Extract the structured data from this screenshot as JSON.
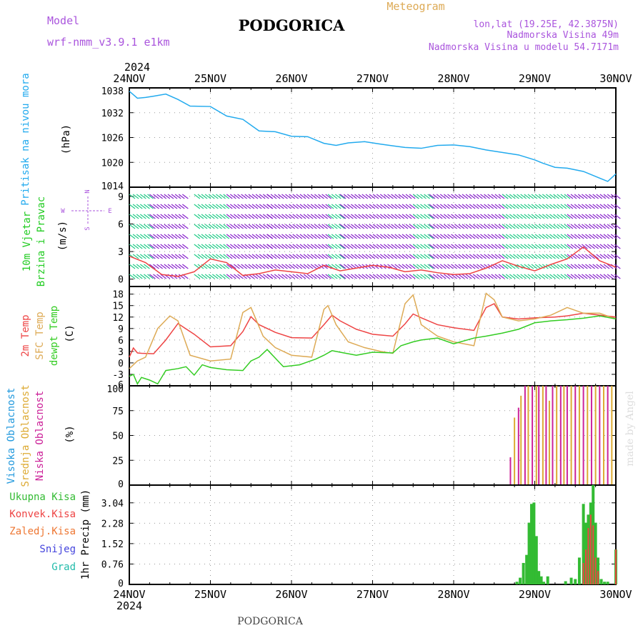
{
  "header": {
    "model_label": "Model",
    "model_name": "wrf-nmm_v3.9.1 e1km",
    "title": "PODGORICA",
    "product": "Meteogram",
    "coords": "lon,lat (19.25E, 42.3875N)",
    "elevation": "Nadmorska Visina 49m",
    "model_elevation": "Nadmorska Visina u modelu 54.7171m",
    "footer_title": "PODGORICA",
    "credit": "made by Angel"
  },
  "colors": {
    "pressure": "#22aaee",
    "temp2m": "#ee4444",
    "sfc": "#ddaa55",
    "dewpt": "#33cc22",
    "high_cloud": "#2299dd",
    "mid_cloud": "#ddaa33",
    "low_cloud": "#cc2299",
    "precip_total": "#33bb33",
    "precip_conv": "#ee4444",
    "precip_frozen": "#ee7733",
    "snow": "#4444dd",
    "hail": "#22bbaa",
    "wind_green": "#22cc88",
    "wind_purple": "#8822cc",
    "label_purple": "#aa55dd"
  },
  "chart_data": [
    {
      "type": "line",
      "title": "Pritisak na nivou mora",
      "ylabel": "(hPa)",
      "ylim": [
        1014,
        1038
      ],
      "yticks": [
        "1038",
        "1032",
        "1026",
        "1020",
        "1014"
      ],
      "x_date_labels": [
        "24NOV",
        "25NOV",
        "26NOV",
        "27NOV",
        "28NOV",
        "29NOV",
        "30NOV"
      ],
      "year_label": "2024",
      "series": [
        {
          "color_key": "pressure",
          "x": [
            0,
            0.1,
            0.2,
            0.3,
            0.45,
            0.6,
            0.75,
            1.0,
            1.2,
            1.4,
            1.6,
            1.8,
            2.0,
            2.2,
            2.4,
            2.55,
            2.7,
            2.9,
            3.1,
            3.25,
            3.4,
            3.6,
            3.8,
            4.0,
            4.2,
            4.4,
            4.6,
            4.8,
            5.0,
            5.1,
            5.25,
            5.4,
            5.6,
            5.8,
            5.9,
            6.0
          ],
          "y": [
            1037.2,
            1035.5,
            1035.7,
            1036.0,
            1036.5,
            1035.2,
            1033.6,
            1033.5,
            1031.2,
            1030.4,
            1027.6,
            1027.4,
            1026.3,
            1026.2,
            1024.6,
            1024.1,
            1024.7,
            1025.0,
            1024.4,
            1024.0,
            1023.6,
            1023.4,
            1024.1,
            1024.2,
            1023.8,
            1023.0,
            1022.4,
            1021.8,
            1020.6,
            1019.8,
            1018.8,
            1018.6,
            1017.8,
            1016.2,
            1015.4,
            1017.2
          ]
        }
      ]
    },
    {
      "type": "line",
      "title": "10m Vjetar Brzina i Pravac",
      "ylabel": "(m/s)",
      "compass_labels": {
        "n": "N",
        "s": "S",
        "e": "E",
        "w": "W"
      },
      "ylim": [
        -0.8,
        10
      ],
      "yticks": [
        "9",
        "6",
        "3",
        "0"
      ],
      "series": [
        {
          "color_key": "temp2m",
          "x": [
            0,
            0.2,
            0.4,
            0.6,
            0.8,
            1.0,
            1.2,
            1.4,
            1.6,
            1.8,
            2.0,
            2.2,
            2.4,
            2.6,
            2.8,
            3.0,
            3.2,
            3.4,
            3.6,
            3.8,
            4.0,
            4.2,
            4.4,
            4.6,
            4.8,
            5.0,
            5.2,
            5.4,
            5.6,
            5.8,
            6.0
          ],
          "y": [
            2.5,
            1.8,
            0.5,
            0.3,
            0.8,
            2.2,
            1.8,
            0.4,
            0.6,
            1.0,
            0.8,
            0.6,
            1.5,
            0.9,
            1.2,
            1.5,
            1.3,
            0.8,
            1.0,
            0.7,
            0.5,
            0.6,
            1.2,
            2.0,
            1.4,
            0.9,
            1.6,
            2.2,
            3.5,
            2.0,
            1.3
          ]
        }
      ]
    },
    {
      "type": "line",
      "title": "2m Temp / SFC Temp / dewpt Temp",
      "ylabel": "(C)",
      "ylim": [
        -6,
        20
      ],
      "yticks": [
        "18",
        "15",
        "12",
        "9",
        "6",
        "3",
        "0",
        "-3",
        "-6"
      ],
      "series": [
        {
          "name": "2m Temp",
          "color_key": "temp2m",
          "x": [
            0,
            0.05,
            0.1,
            0.15,
            0.3,
            0.45,
            0.6,
            0.8,
            1.0,
            1.25,
            1.4,
            1.5,
            1.6,
            1.8,
            2.0,
            2.25,
            2.4,
            2.5,
            2.6,
            2.8,
            3.0,
            3.25,
            3.4,
            3.5,
            3.6,
            3.8,
            4.0,
            4.25,
            4.4,
            4.5,
            4.6,
            4.8,
            5.0,
            5.25,
            5.4,
            5.6,
            5.8,
            6.0
          ],
          "y": [
            1.5,
            3.9,
            2.6,
            2.5,
            2.4,
            6.0,
            10.3,
            7.5,
            4.2,
            4.5,
            8.2,
            12.1,
            10.0,
            8.0,
            6.6,
            6.5,
            10.0,
            12.5,
            11.0,
            8.8,
            7.5,
            7.0,
            10.2,
            12.8,
            11.8,
            10.0,
            9.2,
            8.5,
            14.5,
            15.5,
            12.0,
            11.5,
            11.8,
            12.0,
            12.3,
            13.0,
            12.5,
            12.0
          ]
        },
        {
          "name": "SFC Temp",
          "color_key": "sfc",
          "x": [
            0,
            0.1,
            0.2,
            0.35,
            0.5,
            0.6,
            0.75,
            1.0,
            1.25,
            1.4,
            1.5,
            1.65,
            1.8,
            2.0,
            2.25,
            2.4,
            2.45,
            2.55,
            2.7,
            2.9,
            3.1,
            3.25,
            3.4,
            3.5,
            3.6,
            3.8,
            4.0,
            4.25,
            4.4,
            4.5,
            4.6,
            4.8,
            5.0,
            5.2,
            5.4,
            5.6,
            5.8,
            6.0
          ],
          "y": [
            -1.5,
            0.5,
            1.5,
            9.0,
            12.3,
            11.0,
            2.0,
            0.5,
            1.0,
            13.2,
            14.5,
            7.0,
            4.0,
            2.0,
            1.5,
            14.0,
            15.0,
            10.0,
            5.5,
            4.0,
            3.0,
            2.5,
            15.5,
            17.8,
            10.0,
            7.0,
            5.5,
            4.5,
            18.2,
            16.5,
            12.0,
            11.0,
            11.5,
            12.5,
            14.5,
            13.0,
            13.0,
            11.5
          ]
        },
        {
          "name": "dewpt Temp",
          "color_key": "dewpt",
          "x": [
            0,
            0.05,
            0.1,
            0.15,
            0.25,
            0.35,
            0.45,
            0.6,
            0.7,
            0.8,
            0.9,
            1.0,
            1.2,
            1.4,
            1.5,
            1.6,
            1.7,
            1.9,
            2.1,
            2.3,
            2.4,
            2.5,
            2.6,
            2.8,
            3.0,
            3.25,
            3.35,
            3.5,
            3.6,
            3.8,
            4.0,
            4.25,
            4.4,
            4.6,
            4.8,
            5.0,
            5.2,
            5.4,
            5.6,
            5.8,
            6.0
          ],
          "y": [
            -3.5,
            -3.0,
            -5.5,
            -3.8,
            -4.5,
            -5.5,
            -2.0,
            -1.5,
            -1.0,
            -3.2,
            -0.5,
            -1.2,
            -1.8,
            -2.0,
            0.5,
            1.5,
            3.5,
            -1.0,
            -0.5,
            1.0,
            2.0,
            3.2,
            2.8,
            2.0,
            2.8,
            2.6,
            4.5,
            5.5,
            6.0,
            6.5,
            5.0,
            6.5,
            7.0,
            7.8,
            8.8,
            10.5,
            11.0,
            11.3,
            11.7,
            12.3,
            11.5
          ]
        }
      ]
    },
    {
      "type": "bar",
      "title": "Visoka Oblacnost / Srednja Oblacnost / Niska Oblacnost",
      "ylabel": "(%)",
      "ylim": [
        0,
        100
      ],
      "yticks": [
        "100",
        "75",
        "50",
        "25",
        "0"
      ],
      "series_names": [
        "Visoka Oblacnost",
        "Srednja Oblacnost",
        "Niska Oblacnost"
      ],
      "bars": {
        "x": [
          4.7,
          4.75,
          4.8,
          4.83,
          4.88,
          4.92,
          4.97,
          5.02,
          5.05,
          5.1,
          5.14,
          5.18,
          5.22,
          5.27,
          5.32,
          5.36,
          5.4,
          5.45,
          5.5,
          5.55,
          5.6,
          5.65,
          5.7,
          5.75,
          5.8,
          5.85,
          5.9,
          5.95
        ],
        "values": [
          28,
          68,
          78,
          90,
          100,
          100,
          100,
          100,
          100,
          100,
          100,
          85,
          100,
          100,
          100,
          100,
          100,
          100,
          100,
          100,
          100,
          100,
          100,
          100,
          100,
          100,
          100,
          100
        ],
        "color_keys": [
          "low_cloud",
          "mid_cloud",
          "low_cloud",
          "mid_cloud",
          "low_cloud",
          "mid_cloud",
          "low_cloud",
          "mid_cloud",
          "low_cloud",
          "mid_cloud",
          "low_cloud",
          "mid_cloud",
          "low_cloud",
          "mid_cloud",
          "low_cloud",
          "mid_cloud",
          "low_cloud",
          "mid_cloud",
          "low_cloud",
          "mid_cloud",
          "low_cloud",
          "mid_cloud",
          "low_cloud",
          "mid_cloud",
          "low_cloud",
          "mid_cloud",
          "low_cloud",
          "mid_cloud"
        ]
      }
    },
    {
      "type": "bar",
      "title": "1hr Precip",
      "ylabel": "1hr Precip (mm)",
      "ylim": [
        0,
        3.7
      ],
      "yticks": [
        "3.04",
        "2.28",
        "1.52",
        "0.76",
        "0"
      ],
      "legend": [
        "Ukupna Kisa",
        "Konvek.Kisa",
        "Zaledj.Kisa",
        "Snijeg",
        "Grad"
      ],
      "bars": {
        "x": [
          4.78,
          4.82,
          4.86,
          4.9,
          4.93,
          4.96,
          4.99,
          5.02,
          5.05,
          5.08,
          5.11,
          5.16,
          5.38,
          5.45,
          5.5,
          5.55,
          5.6,
          5.63,
          5.66,
          5.69,
          5.72,
          5.75,
          5.78,
          5.82,
          5.86,
          5.9,
          6.0
        ],
        "values": [
          0.1,
          0.25,
          0.8,
          1.1,
          2.3,
          3.0,
          3.05,
          1.8,
          0.5,
          0.3,
          0.1,
          0.3,
          0.12,
          0.25,
          0.2,
          1.0,
          3.0,
          2.3,
          2.6,
          3.05,
          3.7,
          2.3,
          1.0,
          0.2,
          0.1,
          0.1,
          1.3
        ],
        "conv": [
          0,
          0,
          0,
          0,
          0,
          0,
          0,
          0,
          0,
          0,
          0,
          0,
          0,
          0,
          0,
          0,
          0.8,
          1.3,
          2.1,
          2.6,
          2.2,
          1.0,
          0.5,
          0,
          0,
          0,
          1.3
        ]
      }
    }
  ]
}
